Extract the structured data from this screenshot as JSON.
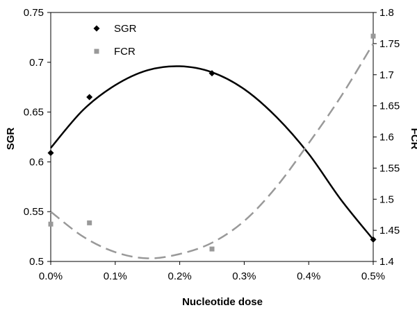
{
  "chart_data": {
    "type": "scatter",
    "xlabel": "Nucleotide dose",
    "x_ticks": [
      "0.0%",
      "0.1%",
      "0.2%",
      "0.3%",
      "0.4%",
      "0.5%"
    ],
    "x_tick_values": [
      0.0,
      0.1,
      0.2,
      0.3,
      0.4,
      0.5
    ],
    "xlim": [
      0.0,
      0.5
    ],
    "y_left": {
      "label": "SGR",
      "ticks": [
        "0.5",
        "0.55",
        "0.6",
        "0.65",
        "0.7",
        "0.75"
      ],
      "tick_values": [
        0.5,
        0.55,
        0.6,
        0.65,
        0.7,
        0.75
      ],
      "ylim": [
        0.5,
        0.75
      ]
    },
    "y_right": {
      "label": "FCR",
      "ticks": [
        "1.4",
        "1.45",
        "1.5",
        "1.55",
        "1.6",
        "1.65",
        "1.7",
        "1.75",
        "1.8"
      ],
      "tick_values": [
        1.4,
        1.45,
        1.5,
        1.55,
        1.6,
        1.65,
        1.7,
        1.75,
        1.8
      ],
      "ylim": [
        1.4,
        1.8
      ]
    },
    "grid": false,
    "legend_position": "top-left",
    "series": [
      {
        "name": "SGR",
        "axis": "left",
        "marker": "diamond",
        "color": "#000000",
        "points": [
          {
            "x": 0.0,
            "y": 0.609
          },
          {
            "x": 0.06,
            "y": 0.665
          },
          {
            "x": 0.25,
            "y": 0.689
          },
          {
            "x": 0.5,
            "y": 0.522
          }
        ],
        "trendline": {
          "style": "solid",
          "color": "#000000",
          "points": [
            {
              "x": 0.0,
              "y": 0.614
            },
            {
              "x": 0.05,
              "y": 0.652
            },
            {
              "x": 0.1,
              "y": 0.677
            },
            {
              "x": 0.15,
              "y": 0.692
            },
            {
              "x": 0.2,
              "y": 0.696
            },
            {
              "x": 0.25,
              "y": 0.69
            },
            {
              "x": 0.3,
              "y": 0.673
            },
            {
              "x": 0.35,
              "y": 0.645
            },
            {
              "x": 0.4,
              "y": 0.608
            },
            {
              "x": 0.45,
              "y": 0.562
            },
            {
              "x": 0.5,
              "y": 0.522
            }
          ]
        }
      },
      {
        "name": "FCR",
        "axis": "right",
        "marker": "square",
        "color": "#999999",
        "points": [
          {
            "x": 0.0,
            "y": 1.46
          },
          {
            "x": 0.06,
            "y": 1.462
          },
          {
            "x": 0.25,
            "y": 1.42
          },
          {
            "x": 0.5,
            "y": 1.762
          }
        ],
        "trendline": {
          "style": "dashed",
          "color": "#999999",
          "points": [
            {
              "x": 0.0,
              "y": 1.48
            },
            {
              "x": 0.05,
              "y": 1.44
            },
            {
              "x": 0.1,
              "y": 1.415
            },
            {
              "x": 0.15,
              "y": 1.405
            },
            {
              "x": 0.2,
              "y": 1.412
            },
            {
              "x": 0.25,
              "y": 1.43
            },
            {
              "x": 0.3,
              "y": 1.465
            },
            {
              "x": 0.35,
              "y": 1.52
            },
            {
              "x": 0.4,
              "y": 1.59
            },
            {
              "x": 0.45,
              "y": 1.665
            },
            {
              "x": 0.5,
              "y": 1.75
            }
          ]
        }
      }
    ]
  }
}
